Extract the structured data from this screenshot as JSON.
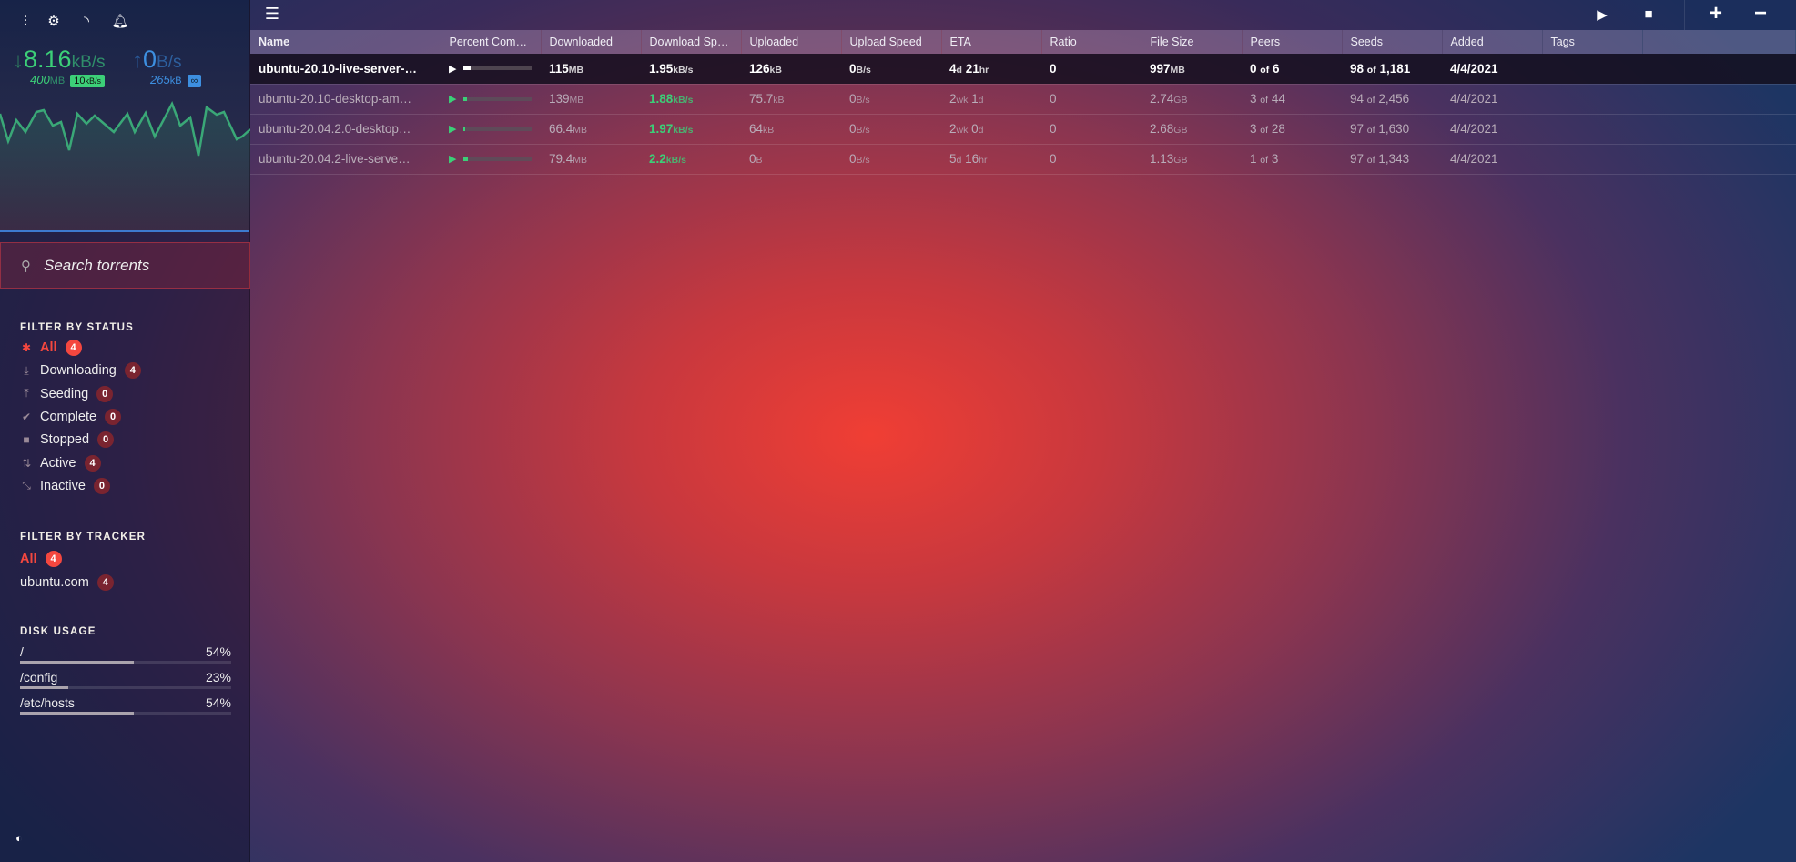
{
  "sidebar": {
    "toolbar_icons": [
      "sliders-icon",
      "gear-icon",
      "rss-icon",
      "bell-icon"
    ],
    "download": {
      "speed": "8.16",
      "unit": "kB/s",
      "total": "400",
      "total_unit": "MB",
      "limit": "10",
      "limit_unit": "kB/s",
      "color": "#3ccf78"
    },
    "upload": {
      "speed": "0",
      "unit": "B/s",
      "total": "265",
      "total_unit": "kB",
      "limit": "∞",
      "color": "#3d8fe0"
    },
    "search_placeholder": "Search torrents",
    "status_title": "FILTER BY STATUS",
    "status": [
      {
        "label": "All",
        "count": "4",
        "icon": "asterisk-icon",
        "glyph": "✱",
        "active": true
      },
      {
        "label": "Downloading",
        "count": "4",
        "icon": "download-icon",
        "glyph": "⤓"
      },
      {
        "label": "Seeding",
        "count": "0",
        "icon": "upload-icon",
        "glyph": "⤒"
      },
      {
        "label": "Complete",
        "count": "0",
        "icon": "check-icon",
        "glyph": "✔"
      },
      {
        "label": "Stopped",
        "count": "0",
        "icon": "stop-icon",
        "glyph": "■"
      },
      {
        "label": "Active",
        "count": "4",
        "icon": "arrows-updown-icon",
        "glyph": "⇅"
      },
      {
        "label": "Inactive",
        "count": "0",
        "icon": "inactive-icon",
        "glyph": "⤡"
      }
    ],
    "tracker_title": "FILTER BY TRACKER",
    "trackers": [
      {
        "label": "All",
        "count": "4",
        "active": true
      },
      {
        "label": "ubuntu.com",
        "count": "4"
      }
    ],
    "disk_title": "DISK USAGE",
    "disks": [
      {
        "path": "/",
        "percent": 54,
        "label": "54%"
      },
      {
        "path": "/config",
        "percent": 23,
        "label": "23%"
      },
      {
        "path": "/etc/hosts",
        "percent": 54,
        "label": "54%"
      }
    ]
  },
  "columns": [
    "Name",
    "Percent Com…",
    "Downloaded",
    "Download Sp…",
    "Uploaded",
    "Upload Speed",
    "ETA",
    "Ratio",
    "File Size",
    "Peers",
    "Seeds",
    "Added",
    "Tags"
  ],
  "torrents": [
    {
      "name": "ubuntu-20.10-live-server-…",
      "percent": 11,
      "downloaded": [
        "115",
        "MB"
      ],
      "dl_speed": [
        "1.95",
        "kB/s"
      ],
      "uploaded": [
        "126",
        "kB"
      ],
      "ul_speed": [
        "0",
        "B/s"
      ],
      "eta": [
        "4",
        "d",
        " 21",
        "hr"
      ],
      "ratio": "0",
      "size": [
        "997",
        "MB"
      ],
      "peers": [
        "0",
        "6"
      ],
      "seeds": [
        "98",
        "1,181"
      ],
      "added": "4/4/2021",
      "tags": "",
      "selected": true
    },
    {
      "name": "ubuntu-20.10-desktop-am…",
      "percent": 5,
      "downloaded": [
        "139",
        "MB"
      ],
      "dl_speed": [
        "1.88",
        "kB/s"
      ],
      "uploaded": [
        "75.7",
        "kB"
      ],
      "ul_speed": [
        "0",
        "B/s"
      ],
      "eta": [
        "2",
        "wk",
        " 1",
        "d"
      ],
      "ratio": "0",
      "size": [
        "2.74",
        "GB"
      ],
      "peers": [
        "3",
        "44"
      ],
      "seeds": [
        "94",
        "2,456"
      ],
      "added": "4/4/2021",
      "tags": ""
    },
    {
      "name": "ubuntu-20.04.2.0-desktop…",
      "percent": 3,
      "downloaded": [
        "66.4",
        "MB"
      ],
      "dl_speed": [
        "1.97",
        "kB/s"
      ],
      "uploaded": [
        "64",
        "kB"
      ],
      "ul_speed": [
        "0",
        "B/s"
      ],
      "eta": [
        "2",
        "wk",
        " 0",
        "d"
      ],
      "ratio": "0",
      "size": [
        "2.68",
        "GB"
      ],
      "peers": [
        "3",
        "28"
      ],
      "seeds": [
        "97",
        "1,630"
      ],
      "added": "4/4/2021",
      "tags": ""
    },
    {
      "name": "ubuntu-20.04.2-live-serve…",
      "percent": 7,
      "downloaded": [
        "79.4",
        "MB"
      ],
      "dl_speed": [
        "2.2",
        "kB/s"
      ],
      "uploaded": [
        "0",
        "B"
      ],
      "ul_speed": [
        "0",
        "B/s"
      ],
      "eta": [
        "5",
        "d",
        " 16",
        "hr"
      ],
      "ratio": "0",
      "size": [
        "1.13",
        "GB"
      ],
      "peers": [
        "1",
        "3"
      ],
      "seeds": [
        "97",
        "1,343"
      ],
      "added": "4/4/2021",
      "tags": ""
    }
  ],
  "topbar_icons": [
    "menu-icon",
    "start-icon",
    "stop-icon",
    "add-icon",
    "remove-icon"
  ],
  "of_label": "of"
}
